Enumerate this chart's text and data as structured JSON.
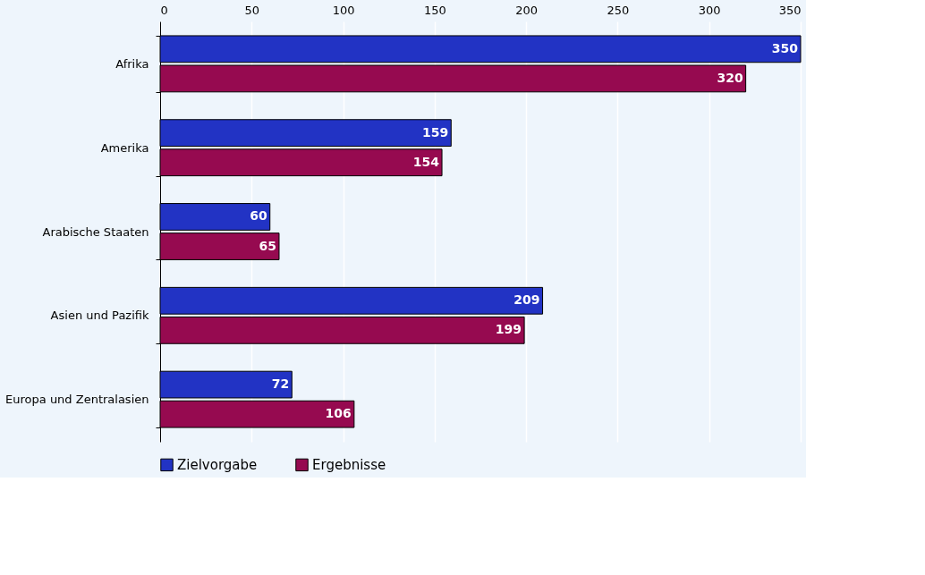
{
  "chart_data": {
    "type": "bar",
    "orientation": "horizontal",
    "categories": [
      "Afrika",
      "Amerika",
      "Arabische Staaten",
      "Asien und Pazifik",
      "Europa und Zentralasien"
    ],
    "series": [
      {
        "name": "Zielvorgabe",
        "color": "#2233c4",
        "values": [
          350,
          159,
          60,
          209,
          72
        ]
      },
      {
        "name": "Ergebnisse",
        "color": "#960a50",
        "values": [
          320,
          154,
          65,
          199,
          106
        ]
      }
    ],
    "xlim": [
      0,
      350
    ],
    "xticks": [
      0,
      50,
      100,
      150,
      200,
      250,
      300,
      350
    ],
    "grid": "x",
    "legend": "bottom",
    "data_labels": true
  }
}
